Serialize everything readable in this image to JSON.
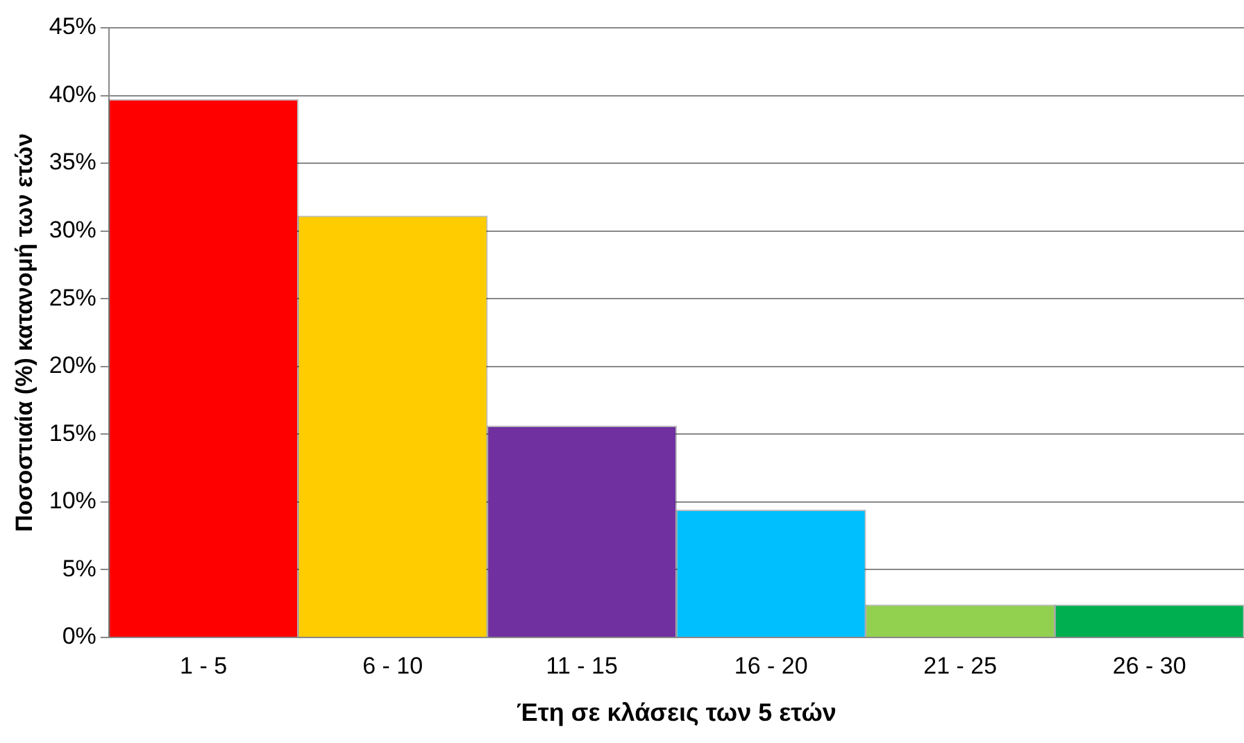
{
  "chart_data": {
    "type": "bar",
    "xlabel": "Έτη σε κλάσεις των 5 ετών",
    "ylabel": "Ποσοστιαία (%) κατανομή των ετών",
    "categories": [
      "1 - 5",
      "6 - 10",
      "11 - 15",
      "16 - 20",
      "21 - 25",
      "26 - 30"
    ],
    "values": [
      39.7,
      31.1,
      15.6,
      9.4,
      2.4,
      2.4
    ],
    "colors": [
      "#ff0000",
      "#ffcc00",
      "#7030a0",
      "#00bfff",
      "#92d050",
      "#00b050"
    ],
    "ylim": [
      0,
      45
    ],
    "yticks": [
      {
        "value": 0,
        "label": "0%"
      },
      {
        "value": 5,
        "label": "5%"
      },
      {
        "value": 10,
        "label": "10%"
      },
      {
        "value": 15,
        "label": "15%"
      },
      {
        "value": 20,
        "label": "20%"
      },
      {
        "value": 25,
        "label": "25%"
      },
      {
        "value": 30,
        "label": "30%"
      },
      {
        "value": 35,
        "label": "35%"
      },
      {
        "value": 40,
        "label": "40%"
      },
      {
        "value": 45,
        "label": "45%"
      }
    ],
    "grid": "y",
    "legend": false
  }
}
